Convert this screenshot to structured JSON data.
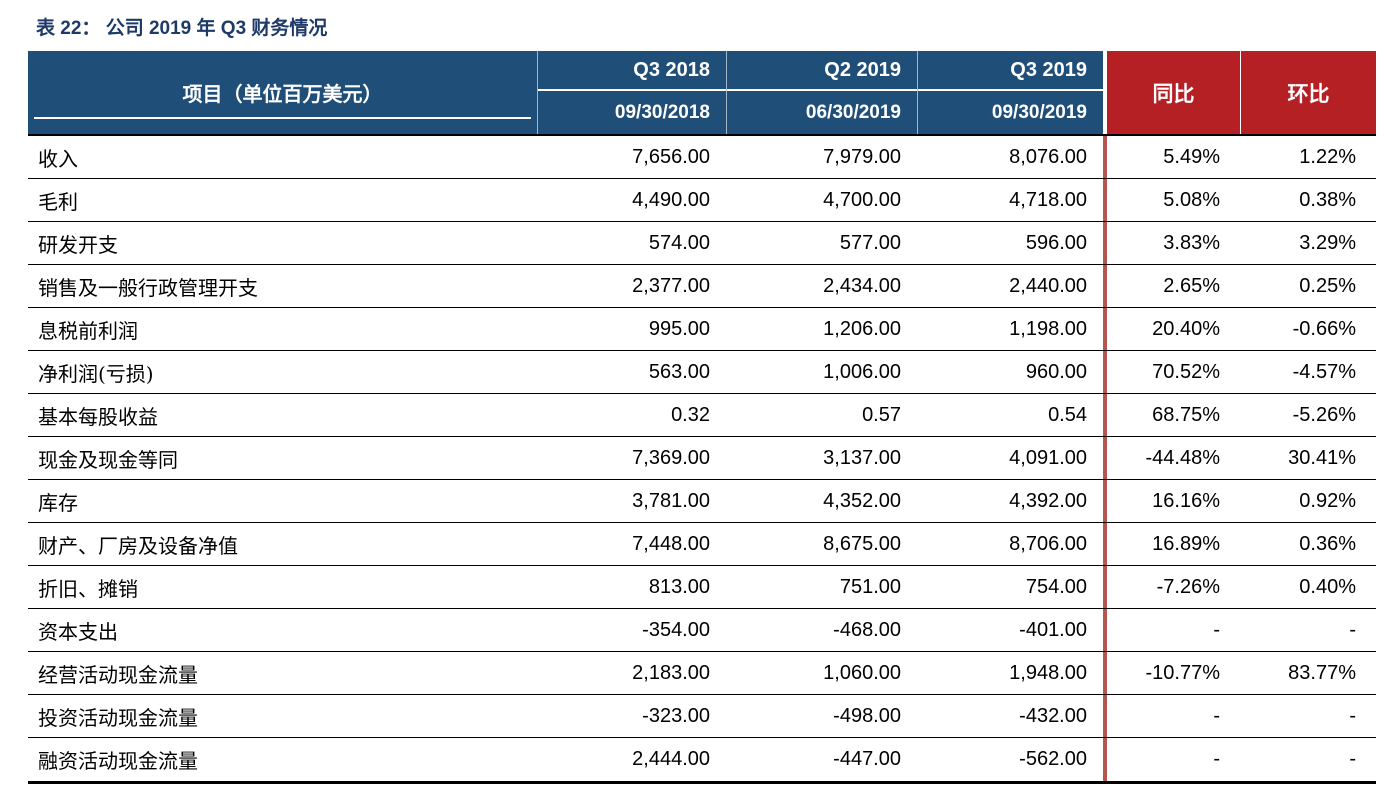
{
  "title": "表 22：  公司 2019 年 Q3 财务情况",
  "table": {
    "item_header": "项目（单位百万美元）",
    "periods": [
      {
        "quarter": "Q3 2018",
        "date": "09/30/2018"
      },
      {
        "quarter": "Q2 2019",
        "date": "06/30/2019"
      },
      {
        "quarter": "Q3 2019",
        "date": "09/30/2019"
      }
    ],
    "yoy_header": "同比",
    "qoq_header": "环比",
    "rows": [
      {
        "label": "收入",
        "values": [
          "7,656.00",
          "7,979.00",
          "8,076.00"
        ],
        "yoy": "5.49%",
        "qoq": "1.22%"
      },
      {
        "label": "毛利",
        "values": [
          "4,490.00",
          "4,700.00",
          "4,718.00"
        ],
        "yoy": "5.08%",
        "qoq": "0.38%"
      },
      {
        "label": "研发开支",
        "values": [
          "574.00",
          "577.00",
          "596.00"
        ],
        "yoy": "3.83%",
        "qoq": "3.29%"
      },
      {
        "label": "销售及一般行政管理开支",
        "values": [
          "2,377.00",
          "2,434.00",
          "2,440.00"
        ],
        "yoy": "2.65%",
        "qoq": "0.25%"
      },
      {
        "label": "息税前利润",
        "values": [
          "995.00",
          "1,206.00",
          "1,198.00"
        ],
        "yoy": "20.40%",
        "qoq": "-0.66%"
      },
      {
        "label": "净利润(亏损)",
        "values": [
          "563.00",
          "1,006.00",
          "960.00"
        ],
        "yoy": "70.52%",
        "qoq": "-4.57%"
      },
      {
        "label": "基本每股收益",
        "values": [
          "0.32",
          "0.57",
          "0.54"
        ],
        "yoy": "68.75%",
        "qoq": "-5.26%"
      },
      {
        "label": "现金及现金等同",
        "values": [
          "7,369.00",
          "3,137.00",
          "4,091.00"
        ],
        "yoy": "-44.48%",
        "qoq": "30.41%"
      },
      {
        "label": "库存",
        "values": [
          "3,781.00",
          "4,352.00",
          "4,392.00"
        ],
        "yoy": "16.16%",
        "qoq": "0.92%"
      },
      {
        "label": "财产、厂房及设备净值",
        "values": [
          "7,448.00",
          "8,675.00",
          "8,706.00"
        ],
        "yoy": "16.89%",
        "qoq": "0.36%"
      },
      {
        "label": "折旧、摊销",
        "values": [
          "813.00",
          "751.00",
          "754.00"
        ],
        "yoy": "-7.26%",
        "qoq": "0.40%"
      },
      {
        "label": "资本支出",
        "values": [
          "-354.00",
          "-468.00",
          "-401.00"
        ],
        "yoy": "-",
        "qoq": "-"
      },
      {
        "label": "经营活动现金流量",
        "values": [
          "2,183.00",
          "1,060.00",
          "1,948.00"
        ],
        "yoy": "-10.77%",
        "qoq": "83.77%"
      },
      {
        "label": "投资活动现金流量",
        "values": [
          "-323.00",
          "-498.00",
          "-432.00"
        ],
        "yoy": "-",
        "qoq": "-"
      },
      {
        "label": "融资活动现金流量",
        "values": [
          "2,444.00",
          "-447.00",
          "-562.00"
        ],
        "yoy": "-",
        "qoq": "-"
      }
    ]
  },
  "colors": {
    "header_blue": "#1F4E79",
    "header_red": "#B52025",
    "divider_red": "#B4554E",
    "title_color": "#1E3A68"
  }
}
